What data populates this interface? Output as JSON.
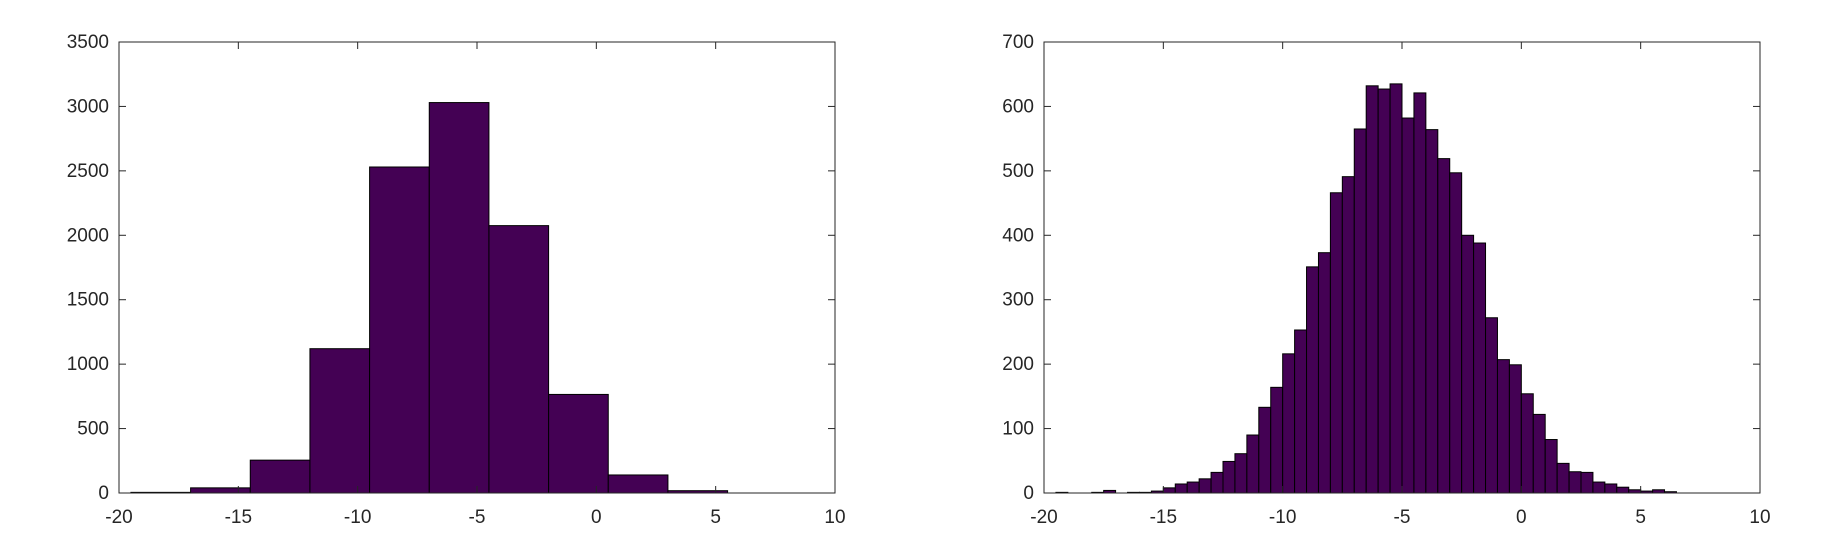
{
  "chart_data": [
    {
      "type": "bar",
      "title": "",
      "xlabel": "",
      "ylabel": "",
      "xlim": [
        -20,
        10
      ],
      "ylim": [
        0,
        3500
      ],
      "xticks": [
        "-20",
        "-15",
        "-10",
        "-5",
        "0",
        "5",
        "10"
      ],
      "yticks": [
        "0",
        "500",
        "1000",
        "1500",
        "2000",
        "2500",
        "3000",
        "3500"
      ],
      "bar_color": "#440154",
      "edge_color": "#000000",
      "grid": false,
      "bins": [
        {
          "x0": -19.5,
          "x1": -17.0,
          "value": 5
        },
        {
          "x0": -17.0,
          "x1": -14.5,
          "value": 40
        },
        {
          "x0": -14.5,
          "x1": -12.0,
          "value": 255
        },
        {
          "x0": -12.0,
          "x1": -9.5,
          "value": 1120
        },
        {
          "x0": -9.5,
          "x1": -7.0,
          "value": 2530
        },
        {
          "x0": -7.0,
          "x1": -4.5,
          "value": 3030
        },
        {
          "x0": -4.5,
          "x1": -2.0,
          "value": 2075
        },
        {
          "x0": -2.0,
          "x1": 0.5,
          "value": 765
        },
        {
          "x0": 0.5,
          "x1": 3.0,
          "value": 140
        },
        {
          "x0": 3.0,
          "x1": 5.5,
          "value": 18
        }
      ]
    },
    {
      "type": "bar",
      "title": "",
      "xlabel": "",
      "ylabel": "",
      "xlim": [
        -20,
        10
      ],
      "ylim": [
        0,
        700
      ],
      "xticks": [
        "-20",
        "-15",
        "-10",
        "-5",
        "0",
        "5",
        "10"
      ],
      "yticks": [
        "0",
        "100",
        "200",
        "300",
        "400",
        "500",
        "600",
        "700"
      ],
      "bar_color": "#440154",
      "edge_color": "#000000",
      "grid": false,
      "bin_start": -19.5,
      "bin_width": 0.5,
      "values": [
        1,
        0,
        0,
        1,
        4,
        0,
        1,
        1,
        3,
        8,
        14,
        17,
        22,
        32,
        49,
        61,
        90,
        133,
        164,
        216,
        253,
        351,
        373,
        466,
        491,
        565,
        632,
        627,
        635,
        582,
        621,
        564,
        519,
        497,
        400,
        388,
        272,
        207,
        199,
        154,
        122,
        83,
        46,
        33,
        32,
        17,
        14,
        9,
        5,
        3,
        5,
        2
      ]
    }
  ]
}
